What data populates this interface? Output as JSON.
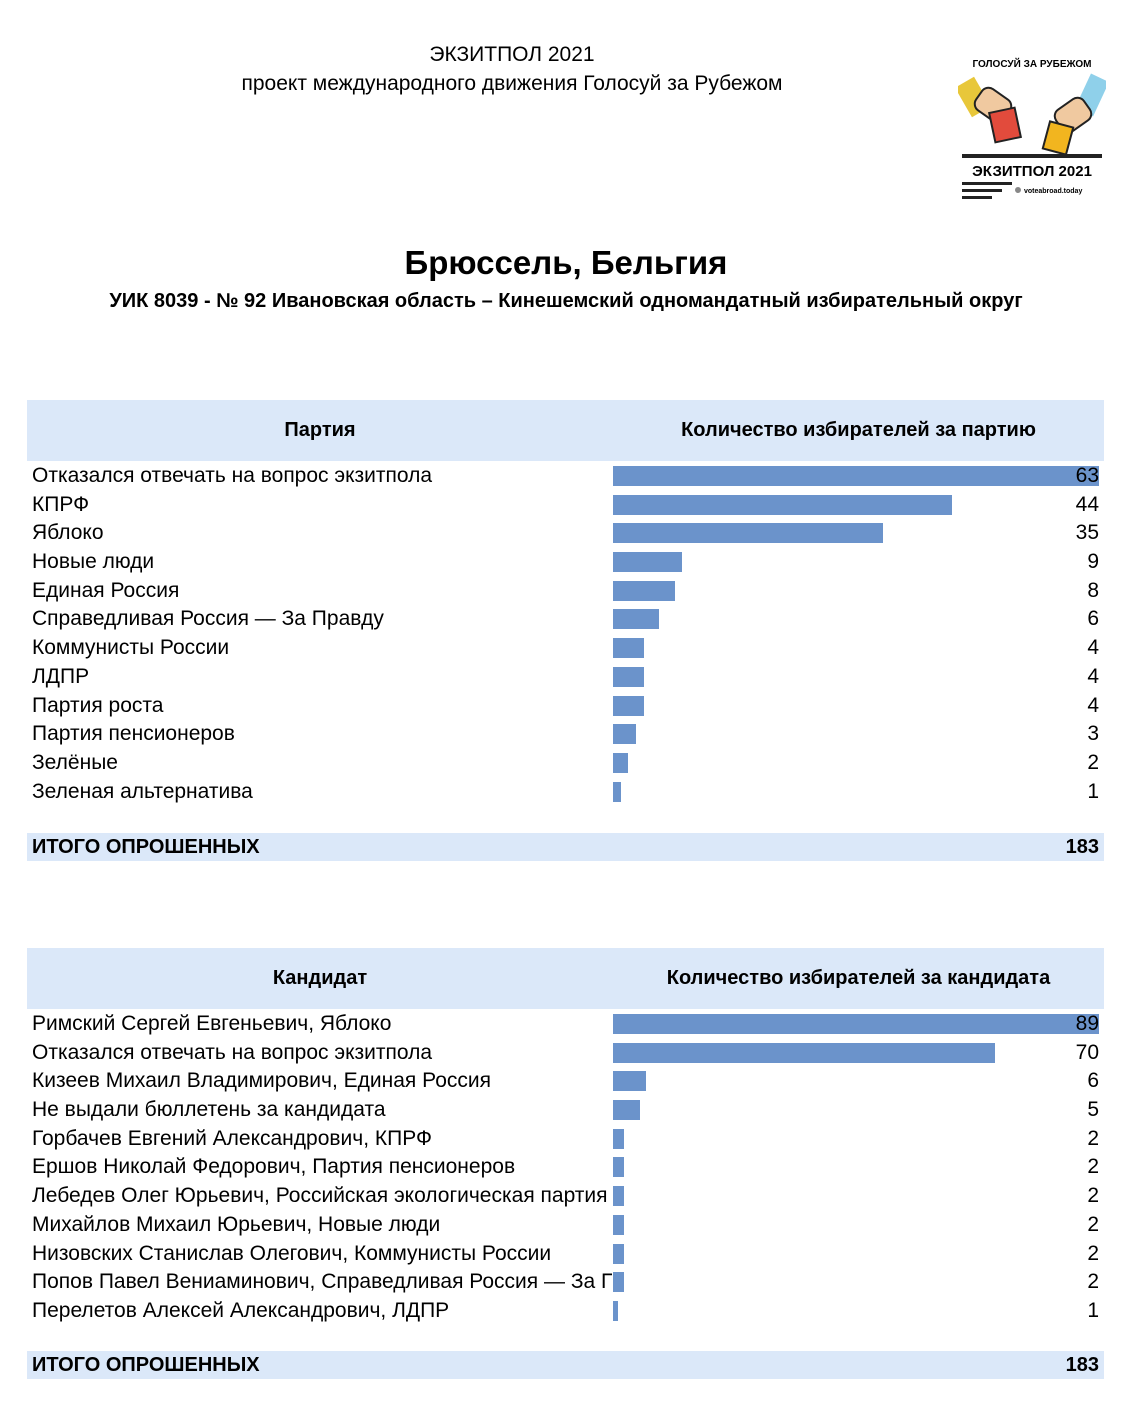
{
  "header": {
    "line1": "ЭКЗИТПОЛ 2021",
    "line2": "проект международного движения Голосуй за Рубежом"
  },
  "logo": {
    "top_text": "ГОЛОСУЙ ЗА РУБЕЖОМ",
    "main_text": "ЭКЗИТПОЛ 2021",
    "site": "voteabroad.today"
  },
  "title": "Брюссель, Бельгия",
  "subtitle": "УИК 8039 - № 92 Ивановская область – Кинешемский одномандатный избирательный округ",
  "colors": {
    "header_bg": "#dbe8f9",
    "bar": "#6b93cb"
  },
  "party_table": {
    "col_left": "Партия",
    "col_right": "Количество избирателей за партию",
    "total_label": "ИТОГО ОПРОШЕННЫХ",
    "total_value": "183"
  },
  "candidate_table": {
    "col_left": "Кандидат",
    "col_right": "Количество избирателей за кандидата",
    "total_label": "ИТОГО ОПРОШЕННЫХ",
    "total_value": "183"
  },
  "chart_data": [
    {
      "type": "bar",
      "orientation": "horizontal",
      "title": "Количество избирателей за партию",
      "categories": [
        "Отказался отвечать на вопрос экзитпола",
        "КПРФ",
        "Яблоко",
        "Новые люди",
        "Единая Россия",
        "Справедливая Россия — За Правду",
        "Коммунисты России",
        "ЛДПР",
        "Партия роста",
        "Партия пенсионеров",
        "Зелёные",
        "Зеленая альтернатива"
      ],
      "values": [
        63,
        44,
        35,
        9,
        8,
        6,
        4,
        4,
        4,
        3,
        2,
        1
      ],
      "xlim": [
        0,
        63
      ]
    },
    {
      "type": "bar",
      "orientation": "horizontal",
      "title": "Количество избирателей за кандидата",
      "categories": [
        "Римский Сергей Евгеньевич, Яблоко",
        "Отказался отвечать на вопрос экзитпола",
        "Кизеев Михаил Владимирович, Единая Россия",
        "Не выдали бюллетень за кандидата",
        "Горбачев Евгений Александрович, КПРФ",
        "Ершов Николай Федорович, Партия пенсионеров",
        "Лебедев Олег Юрьевич, Российская экологическая партия «Зелёные»",
        "Михайлов Михаил Юрьевич, Новые люди",
        "Низовских Станислав Олегович, Коммунисты России",
        "Попов Павел Вениаминович, Справедливая Россия — За Правду",
        "Перелетов Алексей Александрович, ЛДПР"
      ],
      "values": [
        89,
        70,
        6,
        5,
        2,
        2,
        2,
        2,
        2,
        2,
        1
      ],
      "xlim": [
        0,
        89
      ]
    }
  ]
}
